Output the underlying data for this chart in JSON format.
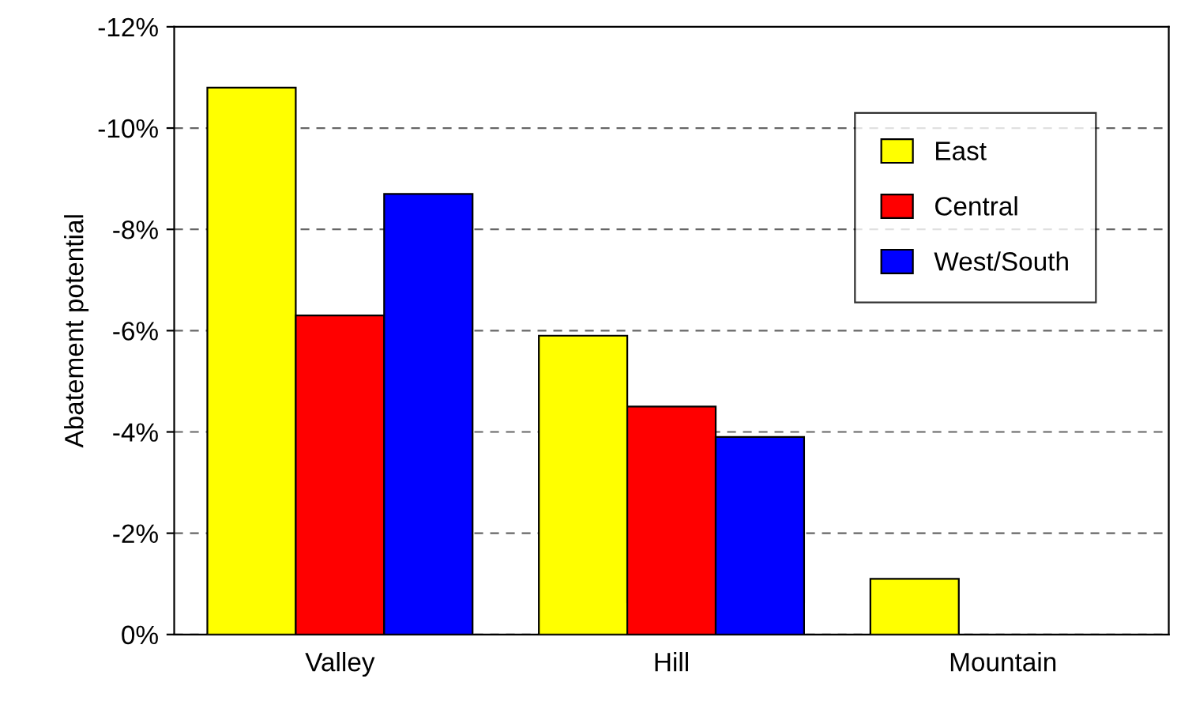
{
  "chart_data": {
    "type": "bar",
    "ylabel": "Abatement potential",
    "categories": [
      "Valley",
      "Hill",
      "Mountain"
    ],
    "series": [
      {
        "name": "East",
        "color": "#ffff00",
        "values": [
          -10.8,
          -5.9,
          -1.1
        ]
      },
      {
        "name": "Central",
        "color": "#ff0000",
        "values": [
          -6.3,
          -4.5,
          null
        ]
      },
      {
        "name": "West/South",
        "color": "#0000ff",
        "values": [
          -8.7,
          -3.9,
          null
        ]
      }
    ],
    "ylim": [
      0,
      -12
    ],
    "yticks": [
      {
        "value": 0,
        "label": "0%"
      },
      {
        "value": -2,
        "label": "-2%"
      },
      {
        "value": -4,
        "label": "-4%"
      },
      {
        "value": -6,
        "label": "-6%"
      },
      {
        "value": -8,
        "label": "-8%"
      },
      {
        "value": -10,
        "label": "-10%"
      },
      {
        "value": -12,
        "label": "-12%"
      }
    ],
    "grid": "y",
    "legend": "top right"
  }
}
